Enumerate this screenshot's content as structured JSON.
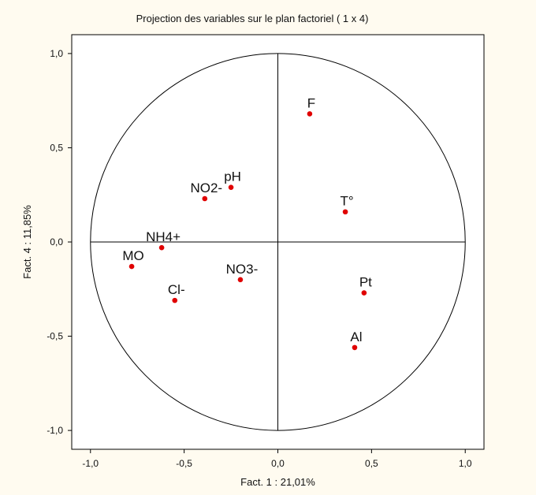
{
  "chart_data": {
    "type": "scatter",
    "title": "Projection des variables sur le plan factoriel ( 1 x 4)",
    "xlabel": "Fact. 1 : 21,01%",
    "ylabel": "Fact. 4 : 11,85%",
    "xlim": [
      -1.1,
      1.1
    ],
    "ylim": [
      -1.1,
      1.1
    ],
    "xticks": [
      -1.0,
      -0.5,
      0.0,
      0.5,
      1.0
    ],
    "yticks": [
      -1.0,
      -0.5,
      0.0,
      0.5,
      1.0
    ],
    "xtick_labels": [
      "-1,0",
      "-0,5",
      "0,0",
      "0,5",
      "1,0"
    ],
    "ytick_labels": [
      "-1,0",
      "-0,5",
      "0,0",
      "0,5",
      "1,0"
    ],
    "grid": false,
    "unit_circle": true,
    "point_color": "#e00000",
    "points": [
      {
        "label": "F",
        "x": 0.17,
        "y": 0.68
      },
      {
        "label": "NO2-",
        "x": -0.39,
        "y": 0.23
      },
      {
        "label": "pH",
        "x": -0.25,
        "y": 0.29
      },
      {
        "label": "T°",
        "x": 0.36,
        "y": 0.16
      },
      {
        "label": "NH4+",
        "x": -0.62,
        "y": -0.03
      },
      {
        "label": "MO",
        "x": -0.78,
        "y": -0.13
      },
      {
        "label": "NO3-",
        "x": -0.2,
        "y": -0.2
      },
      {
        "label": "Cl-",
        "x": -0.55,
        "y": -0.31
      },
      {
        "label": "Pt",
        "x": 0.46,
        "y": -0.27
      },
      {
        "label": "Al",
        "x": 0.41,
        "y": -0.56
      }
    ]
  }
}
